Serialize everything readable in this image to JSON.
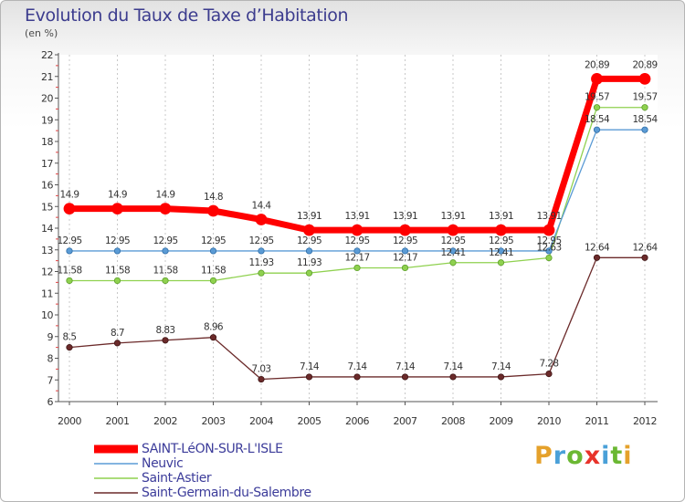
{
  "title": "Evolution du Taux de Taxe d’Habitation",
  "subtitle": "(en %)",
  "brand": {
    "letters": [
      "P",
      "r",
      "o",
      "x",
      "i",
      "t",
      "i"
    ],
    "colors": [
      "#e5a12b",
      "#4aa0d8",
      "#6bb833",
      "#e8332a",
      "#4aa0d8",
      "#6bb833",
      "#e5a12b"
    ]
  },
  "chart_data": {
    "type": "line",
    "x": [
      "2000",
      "2001",
      "2002",
      "2003",
      "2004",
      "2005",
      "2006",
      "2007",
      "2008",
      "2009",
      "2010",
      "2011",
      "2012"
    ],
    "ylim": [
      6,
      22
    ],
    "yticks": [
      "6",
      "7",
      "8",
      "9",
      "10",
      "11",
      "12",
      "13",
      "14",
      "15",
      "16",
      "17",
      "18",
      "19",
      "20",
      "21",
      "22"
    ],
    "grid": "vertical dashed",
    "legend_position": "bottom",
    "series": [
      {
        "name": "SAINT-LéON-SUR-L'ISLE",
        "color": "#ff0000",
        "values": [
          14.9,
          14.9,
          14.9,
          14.8,
          14.4,
          13.91,
          13.91,
          13.91,
          13.91,
          13.91,
          13.91,
          20.89,
          20.89
        ],
        "labels": [
          "14.9",
          "14.9",
          "14.9",
          "14.8",
          "14.4",
          "13.91",
          "13.91",
          "13.91",
          "13.91",
          "13.91",
          "13.91",
          "20.89",
          "20.89"
        ]
      },
      {
        "name": "Neuvic",
        "color": "#5b9bd5",
        "values": [
          12.95,
          12.95,
          12.95,
          12.95,
          12.95,
          12.95,
          12.95,
          12.95,
          12.95,
          12.95,
          12.95,
          18.54,
          18.54
        ],
        "labels": [
          "12.95",
          "12.95",
          "12.95",
          "12.95",
          "12.95",
          "12.95",
          "12.95",
          "12.95",
          "12.95",
          "12.95",
          "12.95",
          "18.54",
          "18.54"
        ]
      },
      {
        "name": "Saint-Astier",
        "color": "#8fd14f",
        "values": [
          11.58,
          11.58,
          11.58,
          11.58,
          11.93,
          11.93,
          12.17,
          12.17,
          12.41,
          12.41,
          12.63,
          19.57,
          19.57
        ],
        "labels": [
          "11.58",
          "11.58",
          "11.58",
          "11.58",
          "11.93",
          "11.93",
          "12.17",
          "12.17",
          "12.41",
          "12.41",
          "12.63",
          "19.57",
          "19.57"
        ]
      },
      {
        "name": "Saint-Germain-du-Salembre",
        "color": "#6b2a2a",
        "values": [
          8.5,
          8.7,
          8.83,
          8.96,
          7.03,
          7.14,
          7.14,
          7.14,
          7.14,
          7.14,
          7.28,
          12.64,
          12.64
        ],
        "labels": [
          "8.5",
          "8.7",
          "8.83",
          "8.96",
          "7.03",
          "7.14",
          "7.14",
          "7.14",
          "7.14",
          "7.14",
          "7.28",
          "12.64",
          "12.64"
        ]
      }
    ]
  }
}
